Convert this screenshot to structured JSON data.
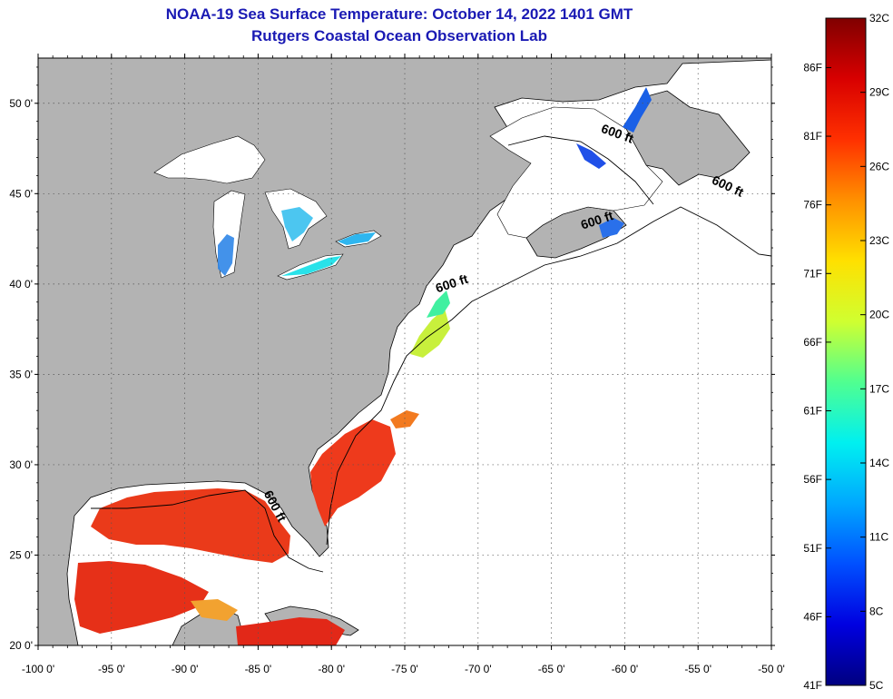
{
  "header": {
    "title": "NOAA-19 Sea Surface Temperature:  October 14, 2022 1401 GMT",
    "subtitle": "Rutgers Coastal Ocean Observation Lab"
  },
  "map": {
    "lon_range": [
      -100,
      -50
    ],
    "lat_range": [
      20,
      52.5
    ],
    "lat_ticks": [
      {
        "value": 50,
        "label": "50 0'"
      },
      {
        "value": 45,
        "label": "45 0'"
      },
      {
        "value": 40,
        "label": "40 0'"
      },
      {
        "value": 35,
        "label": "35 0'"
      },
      {
        "value": 30,
        "label": "30 0'"
      },
      {
        "value": 25,
        "label": "25 0'"
      },
      {
        "value": 20,
        "label": "20 0'"
      }
    ],
    "lon_ticks": [
      {
        "value": -100,
        "label": "-100 0'"
      },
      {
        "value": -95,
        "label": "-95 0'"
      },
      {
        "value": -90,
        "label": "-90 0'"
      },
      {
        "value": -85,
        "label": "-85 0'"
      },
      {
        "value": -80,
        "label": "-80 0'"
      },
      {
        "value": -75,
        "label": "-75 0'"
      },
      {
        "value": -70,
        "label": "-70 0'"
      },
      {
        "value": -65,
        "label": "-65 0'"
      },
      {
        "value": -60,
        "label": "-60 0'"
      },
      {
        "value": -55,
        "label": "-55 0'"
      },
      {
        "value": -50,
        "label": "-50 0'"
      }
    ],
    "contour_labels": [
      {
        "text": "600 ft",
        "lon": -84.1,
        "lat": 27.6,
        "angle": 62
      },
      {
        "text": "600 ft",
        "lon": -71.7,
        "lat": 39.8,
        "angle": -18
      },
      {
        "text": "600 ft",
        "lon": -61.8,
        "lat": 43.3,
        "angle": -18
      },
      {
        "text": "600 ft",
        "lon": -53.1,
        "lat": 45.2,
        "angle": 25
      },
      {
        "text": "600 ft",
        "lon": -60.6,
        "lat": 48.1,
        "angle": 20
      }
    ],
    "colors": {
      "land": "#b3b3b3",
      "ocean_nodata": "#ffffff",
      "grid": "#555555"
    }
  },
  "colorbar": {
    "min_c": 5,
    "max_c": 32,
    "celsius_labels": [
      {
        "value": 32,
        "label": "32C"
      },
      {
        "value": 29,
        "label": "29C"
      },
      {
        "value": 26,
        "label": "26C"
      },
      {
        "value": 23,
        "label": "23C"
      },
      {
        "value": 20,
        "label": "20C"
      },
      {
        "value": 17,
        "label": "17C"
      },
      {
        "value": 14,
        "label": "14C"
      },
      {
        "value": 11,
        "label": "11C"
      },
      {
        "value": 8,
        "label": "8C"
      },
      {
        "value": 5,
        "label": "5C"
      }
    ],
    "fahrenheit_labels": [
      {
        "value": 86,
        "label": "86F"
      },
      {
        "value": 81,
        "label": "81F"
      },
      {
        "value": 76,
        "label": "76F"
      },
      {
        "value": 71,
        "label": "71F"
      },
      {
        "value": 66,
        "label": "66F"
      },
      {
        "value": 61,
        "label": "61F"
      },
      {
        "value": 56,
        "label": "56F"
      },
      {
        "value": 51,
        "label": "51F"
      },
      {
        "value": 46,
        "label": "46F"
      },
      {
        "value": 41,
        "label": "41F"
      }
    ],
    "stops": [
      "#000080",
      "#0000e0",
      "#0050ff",
      "#00a8ff",
      "#00f0f0",
      "#50ff90",
      "#d0ff30",
      "#ffe000",
      "#ff9000",
      "#ff3000",
      "#d80000",
      "#800000"
    ]
  }
}
